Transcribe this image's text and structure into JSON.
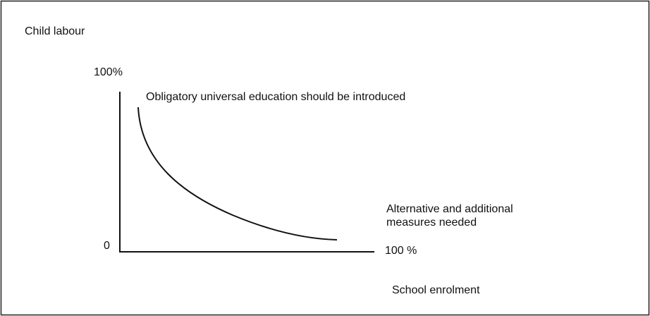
{
  "title": "Child labour",
  "y_axis": {
    "top_label": "100%",
    "bottom_label": "0"
  },
  "x_axis": {
    "end_label": "100 %",
    "title": "School enrolment"
  },
  "annotations": [
    "Obligatory universal education should be introduced",
    "Alternative and additional",
    "measures needed"
  ]
}
